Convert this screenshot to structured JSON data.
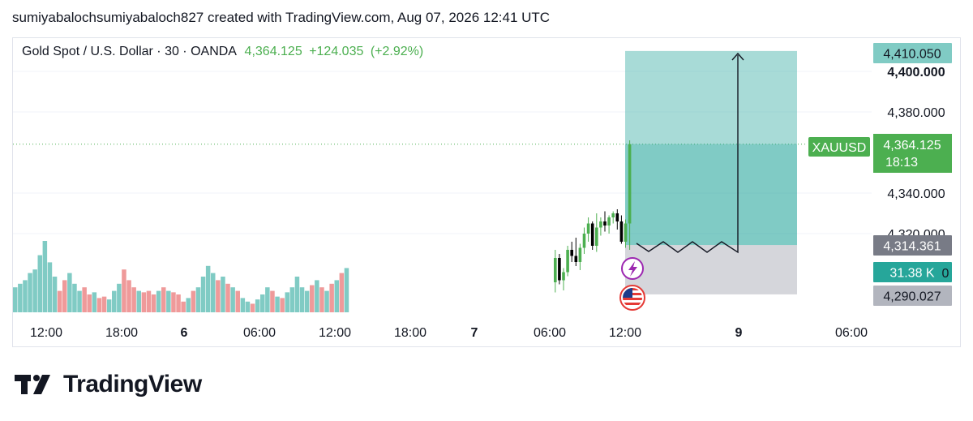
{
  "header": {
    "text": "sumiyabalochsumiyabaloch827 created with TradingView.com, Aug 07, 2026 12:41 UTC"
  },
  "legend": {
    "symbol": "Gold Spot / U.S. Dollar · 30 · OANDA",
    "last": "4,364.125",
    "change": "+124.035",
    "change_pct": "(+2.92%)"
  },
  "brand": {
    "name": "TradingView"
  },
  "colors": {
    "up": "#4caf50",
    "down": "#000000",
    "vol_up": "#80cbc4",
    "vol_down": "#ef9a9a",
    "profit_zone": "#26a69a",
    "loss_zone": "#b2b5be",
    "accent": "#4caf50"
  },
  "chart_data": {
    "type": "candlestick",
    "symbol": "XAUUSD",
    "interval": "30",
    "y_ticks": [
      "4,400.000",
      "4,380.000",
      "4,340.000",
      "4,320.000"
    ],
    "y_range": [
      4285,
      4420
    ],
    "x_ticks": [
      "12:00",
      "18:00",
      "6",
      "06:00",
      "12:00",
      "18:00",
      "7",
      "06:00",
      "12:00",
      "9",
      "06:00"
    ],
    "price_labels": {
      "target": "4,410.050",
      "bold_level": "4,400.000",
      "last_name": "XAUUSD",
      "last_price": "4,364.125",
      "countdown": "18:13",
      "entry": "4,314.361",
      "volume": "31.38 K",
      "volume_suffix": "0",
      "stop": "4,290.027"
    },
    "position": {
      "entry": 4314.361,
      "target": 4410.05,
      "stop": 4290.027,
      "type": "long"
    },
    "candles": [
      {
        "o": 4296.0,
        "h": 4312.0,
        "l": 4291.0,
        "c": 4308.0
      },
      {
        "o": 4308.0,
        "h": 4310.0,
        "l": 4295.0,
        "c": 4297.0
      },
      {
        "o": 4297.0,
        "h": 4303.0,
        "l": 4292.0,
        "c": 4301.0
      },
      {
        "o": 4301.0,
        "h": 4314.0,
        "l": 4299.0,
        "c": 4312.0
      },
      {
        "o": 4312.0,
        "h": 4316.0,
        "l": 4306.0,
        "c": 4309.0
      },
      {
        "o": 4309.0,
        "h": 4318.0,
        "l": 4304.0,
        "c": 4306.0
      },
      {
        "o": 4306.0,
        "h": 4315.0,
        "l": 4302.0,
        "c": 4313.0
      },
      {
        "o": 4313.0,
        "h": 4323.0,
        "l": 4310.0,
        "c": 4320.0
      },
      {
        "o": 4320.0,
        "h": 4328.0,
        "l": 4316.0,
        "c": 4325.0
      },
      {
        "o": 4325.0,
        "h": 4326.0,
        "l": 4312.0,
        "c": 4314.0
      },
      {
        "o": 4314.0,
        "h": 4330.0,
        "l": 4311.0,
        "c": 4323.0
      },
      {
        "o": 4323.0,
        "h": 4328.0,
        "l": 4319.0,
        "c": 4326.0
      },
      {
        "o": 4326.0,
        "h": 4331.0,
        "l": 4321.0,
        "c": 4324.0
      },
      {
        "o": 4324.0,
        "h": 4329.0,
        "l": 4320.0,
        "c": 4328.0
      },
      {
        "o": 4328.0,
        "h": 4331.0,
        "l": 4325.0,
        "c": 4330.0
      },
      {
        "o": 4330.0,
        "h": 4332.0,
        "l": 4322.0,
        "c": 4326.0
      },
      {
        "o": 4326.0,
        "h": 4329.0,
        "l": 4315.0,
        "c": 4316.0
      },
      {
        "o": 4316.0,
        "h": 4327.0,
        "l": 4313.0,
        "c": 4325.0
      },
      {
        "o": 4325.0,
        "h": 4366.0,
        "l": 4312.0,
        "c": 4364.125
      }
    ],
    "volume": [
      {
        "v": 0.35,
        "up": true
      },
      {
        "v": 0.4,
        "up": true
      },
      {
        "v": 0.45,
        "up": true
      },
      {
        "v": 0.55,
        "up": true
      },
      {
        "v": 0.6,
        "up": true
      },
      {
        "v": 0.8,
        "up": true
      },
      {
        "v": 1.0,
        "up": true
      },
      {
        "v": 0.7,
        "up": true
      },
      {
        "v": 0.5,
        "up": true
      },
      {
        "v": 0.3,
        "up": false
      },
      {
        "v": 0.45,
        "up": false
      },
      {
        "v": 0.55,
        "up": true
      },
      {
        "v": 0.4,
        "up": true
      },
      {
        "v": 0.3,
        "up": true
      },
      {
        "v": 0.35,
        "up": false
      },
      {
        "v": 0.25,
        "up": false
      },
      {
        "v": 0.28,
        "up": true
      },
      {
        "v": 0.2,
        "up": false
      },
      {
        "v": 0.22,
        "up": false
      },
      {
        "v": 0.18,
        "up": true
      },
      {
        "v": 0.3,
        "up": true
      },
      {
        "v": 0.4,
        "up": true
      },
      {
        "v": 0.6,
        "up": false
      },
      {
        "v": 0.45,
        "up": false
      },
      {
        "v": 0.35,
        "up": false
      },
      {
        "v": 0.3,
        "up": true
      },
      {
        "v": 0.28,
        "up": false
      },
      {
        "v": 0.3,
        "up": false
      },
      {
        "v": 0.25,
        "up": false
      },
      {
        "v": 0.3,
        "up": true
      },
      {
        "v": 0.35,
        "up": false
      },
      {
        "v": 0.3,
        "up": true
      },
      {
        "v": 0.28,
        "up": false
      },
      {
        "v": 0.25,
        "up": false
      },
      {
        "v": 0.15,
        "up": false
      },
      {
        "v": 0.2,
        "up": true
      },
      {
        "v": 0.3,
        "up": false
      },
      {
        "v": 0.35,
        "up": true
      },
      {
        "v": 0.5,
        "up": true
      },
      {
        "v": 0.65,
        "up": true
      },
      {
        "v": 0.55,
        "up": true
      },
      {
        "v": 0.45,
        "up": false
      },
      {
        "v": 0.5,
        "up": true
      },
      {
        "v": 0.4,
        "up": false
      },
      {
        "v": 0.35,
        "up": true
      },
      {
        "v": 0.3,
        "up": false
      },
      {
        "v": 0.2,
        "up": true
      },
      {
        "v": 0.15,
        "up": true
      },
      {
        "v": 0.12,
        "up": false
      },
      {
        "v": 0.18,
        "up": true
      },
      {
        "v": 0.25,
        "up": true
      },
      {
        "v": 0.35,
        "up": true
      },
      {
        "v": 0.3,
        "up": false
      },
      {
        "v": 0.22,
        "up": true
      },
      {
        "v": 0.2,
        "up": false
      },
      {
        "v": 0.28,
        "up": true
      },
      {
        "v": 0.35,
        "up": true
      },
      {
        "v": 0.5,
        "up": true
      },
      {
        "v": 0.35,
        "up": true
      },
      {
        "v": 0.3,
        "up": true
      },
      {
        "v": 0.38,
        "up": false
      },
      {
        "v": 0.45,
        "up": true
      },
      {
        "v": 0.35,
        "up": false
      },
      {
        "v": 0.3,
        "up": true
      },
      {
        "v": 0.4,
        "up": false
      },
      {
        "v": 0.45,
        "up": true
      },
      {
        "v": 0.55,
        "up": false
      },
      {
        "v": 0.62,
        "up": true
      }
    ]
  }
}
